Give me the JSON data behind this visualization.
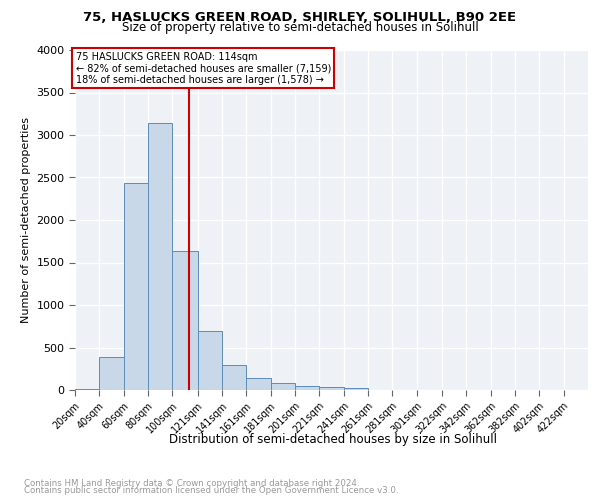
{
  "title1": "75, HASLUCKS GREEN ROAD, SHIRLEY, SOLIHULL, B90 2EE",
  "title2": "Size of property relative to semi-detached houses in Solihull",
  "xlabel": "Distribution of semi-detached houses by size in Solihull",
  "ylabel": "Number of semi-detached properties",
  "bin_edges": [
    20,
    40,
    60,
    80,
    100,
    121,
    141,
    161,
    181,
    201,
    221,
    241,
    261,
    281,
    301,
    322,
    342,
    362,
    382,
    402,
    422,
    442
  ],
  "bin_labels": [
    "20sqm",
    "40sqm",
    "60sqm",
    "80sqm",
    "100sqm",
    "121sqm",
    "141sqm",
    "161sqm",
    "181sqm",
    "201sqm",
    "221sqm",
    "241sqm",
    "261sqm",
    "281sqm",
    "301sqm",
    "322sqm",
    "342sqm",
    "362sqm",
    "382sqm",
    "402sqm",
    "422sqm"
  ],
  "bar_values": [
    15,
    390,
    2430,
    3140,
    1640,
    695,
    295,
    140,
    80,
    45,
    30,
    20,
    5,
    2,
    1,
    0,
    0,
    0,
    0,
    0,
    0
  ],
  "bar_color": "#c8d8e8",
  "bar_edge_color": "#5b8db8",
  "property_size": 114,
  "vline_color": "#cc0000",
  "annotation_title": "75 HASLUCKS GREEN ROAD: 114sqm",
  "annotation_line1": "← 82% of semi-detached houses are smaller (7,159)",
  "annotation_line2": "18% of semi-detached houses are larger (1,578) →",
  "annotation_box_color": "#cc0000",
  "ylim": [
    0,
    4000
  ],
  "yticks": [
    0,
    500,
    1000,
    1500,
    2000,
    2500,
    3000,
    3500,
    4000
  ],
  "footer1": "Contains HM Land Registry data © Crown copyright and database right 2024.",
  "footer2": "Contains public sector information licensed under the Open Government Licence v3.0.",
  "plot_background": "#eef2f7"
}
